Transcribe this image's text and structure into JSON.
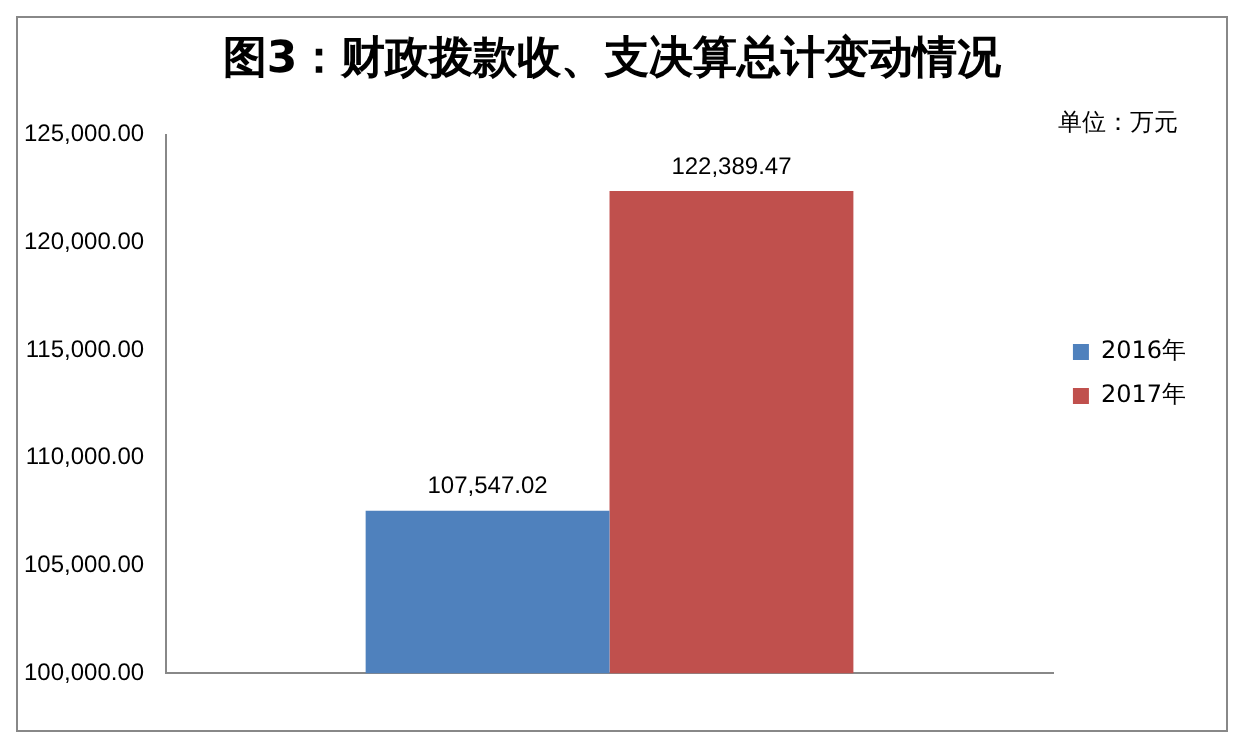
{
  "chart_data": {
    "type": "bar",
    "title": "图3：财政拨款收、支决算总计变动情况",
    "annotations": [
      "单位：万元"
    ],
    "categories": [
      null
    ],
    "series": [
      {
        "name": "2016年",
        "color": "#4f81bd",
        "values": [
          107547.02
        ],
        "value_labels": [
          "107,547.02"
        ]
      },
      {
        "name": "2017年",
        "color": "#c0504d",
        "values": [
          122389.47
        ],
        "value_labels": [
          "122,389.47"
        ]
      }
    ],
    "ylim": [
      100000,
      125000
    ],
    "yticks": [
      {
        "value": 100000,
        "label": "100,000.00"
      },
      {
        "value": 105000,
        "label": "105,000.00"
      },
      {
        "value": 110000,
        "label": "110,000.00"
      },
      {
        "value": 115000,
        "label": "115,000.00"
      },
      {
        "value": 120000,
        "label": "120,000.00"
      },
      {
        "value": 125000,
        "label": "125,000.00"
      }
    ],
    "legend": "right",
    "grid": false
  }
}
